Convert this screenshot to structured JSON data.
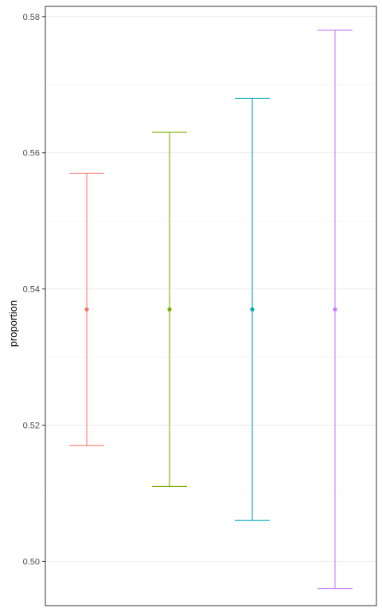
{
  "chart_data": {
    "type": "errorbar",
    "ylabel": "proportion",
    "xlabel": "",
    "ylim": [
      0.4935,
      0.5815
    ],
    "y_ticks": [
      0.5,
      0.52,
      0.54,
      0.56,
      0.58
    ],
    "y_tick_labels": [
      "0.50",
      "0.52",
      "0.54",
      "0.56",
      "0.58"
    ],
    "y_minor_ticks": [
      0.51,
      0.53,
      0.55,
      0.57
    ],
    "grid": true,
    "legend": "none",
    "series": [
      {
        "estimate": 0.537,
        "lower": 0.517,
        "upper": 0.557,
        "color": "#F8766D"
      },
      {
        "estimate": 0.537,
        "lower": 0.511,
        "upper": 0.563,
        "color": "#7CAE00"
      },
      {
        "estimate": 0.537,
        "lower": 0.506,
        "upper": 0.568,
        "color": "#00A9B8"
      },
      {
        "estimate": 0.537,
        "lower": 0.496,
        "upper": 0.578,
        "color": "#C77CFF"
      }
    ]
  }
}
